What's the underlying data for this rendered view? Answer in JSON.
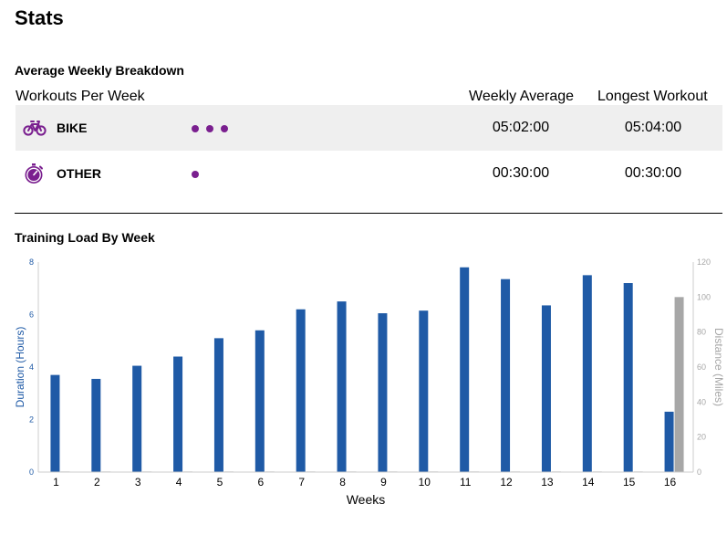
{
  "page": {
    "title": "Stats"
  },
  "breakdown": {
    "title": "Average Weekly Breakdown",
    "headers": {
      "workouts_per_week": "Workouts Per Week",
      "weekly_average": "Weekly Average",
      "longest_workout": "Longest Workout"
    },
    "rows": [
      {
        "icon": "bike-icon",
        "label": "BIKE",
        "workouts_per_week": 3,
        "weekly_average": "05:02:00",
        "longest_workout": "05:04:00"
      },
      {
        "icon": "stopwatch-icon",
        "label": "OTHER",
        "workouts_per_week": 1,
        "weekly_average": "00:30:00",
        "longest_workout": "00:30:00"
      }
    ],
    "accent_color": "#7a1f8f"
  },
  "chart_data": {
    "type": "bar",
    "title": "Training Load By Week",
    "xlabel": "Weeks",
    "categories": [
      "1",
      "2",
      "3",
      "4",
      "5",
      "6",
      "7",
      "8",
      "9",
      "10",
      "11",
      "12",
      "13",
      "14",
      "15",
      "16"
    ],
    "y_left": {
      "label": "Duration (Hours)",
      "ylim": [
        0,
        8
      ],
      "ticks": [
        "0",
        "2",
        "4",
        "6",
        "8"
      ],
      "color": "#1f5aa6"
    },
    "y_right": {
      "label": "Distance (Miles)",
      "ylim": [
        0,
        120
      ],
      "ticks": [
        "0",
        "20",
        "40",
        "60",
        "80",
        "100",
        "120"
      ],
      "color": "#a7a7a7"
    },
    "series": [
      {
        "name": "Duration (Hours)",
        "axis": "left",
        "color": "#1f5aa6",
        "values": [
          3.7,
          3.55,
          4.05,
          4.4,
          5.1,
          5.4,
          6.2,
          6.5,
          6.05,
          6.15,
          7.8,
          7.35,
          6.35,
          7.5,
          7.2,
          2.3
        ]
      },
      {
        "name": "Distance (Miles)",
        "axis": "right",
        "color": "#a7a7a7",
        "values": [
          0,
          0,
          0,
          0,
          0,
          0,
          0,
          0,
          0,
          0,
          0,
          0,
          0,
          0,
          0,
          100
        ]
      }
    ],
    "grid": false,
    "legend": "none"
  }
}
